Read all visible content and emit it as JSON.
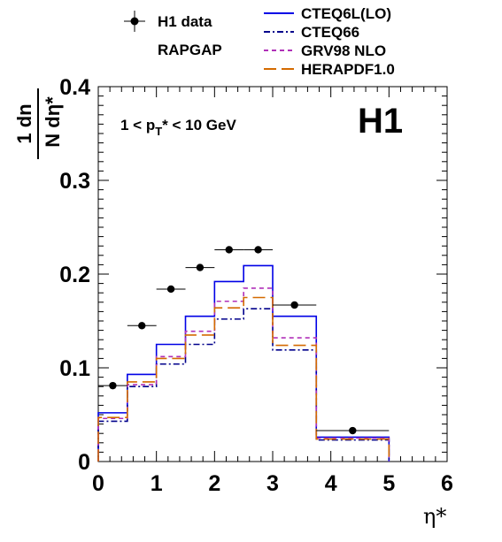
{
  "chart_data": {
    "type": "line",
    "title": "",
    "experiment_label": "H1",
    "selection_label": {
      "pre": "1 < p",
      "sub": "T",
      "post": "* < 10 GeV"
    },
    "xlabel": "η*",
    "ylabel": {
      "numerator": "1 dn",
      "denominator": "N dη*"
    },
    "xlim": [
      0,
      6
    ],
    "ylim": [
      0,
      0.4
    ],
    "x_ticks": [
      "0",
      "1",
      "2",
      "3",
      "4",
      "5",
      "6"
    ],
    "y_ticks": [
      "0",
      "0.1",
      "0.2",
      "0.3",
      "0.4"
    ],
    "grid": false,
    "bin_edges": [
      0,
      0.5,
      1.0,
      1.5,
      2.0,
      2.5,
      3.0,
      3.75,
      5.0
    ],
    "data_points": {
      "name": "H1 data",
      "points": [
        {
          "x": 0.25,
          "y": 0.081,
          "xerr": 0.25
        },
        {
          "x": 0.75,
          "y": 0.145,
          "xerr": 0.25
        },
        {
          "x": 1.25,
          "y": 0.184,
          "xerr": 0.25
        },
        {
          "x": 1.75,
          "y": 0.207,
          "xerr": 0.25
        },
        {
          "x": 2.25,
          "y": 0.226,
          "xerr": 0.25
        },
        {
          "x": 2.75,
          "y": 0.226,
          "xerr": 0.25
        },
        {
          "x": 3.375,
          "y": 0.167,
          "xerr": 0.375
        },
        {
          "x": 4.375,
          "y": 0.033,
          "xerr": 0.625
        }
      ]
    },
    "model_label": "RAPGAP",
    "series": [
      {
        "name": "CTEQ6L(LO)",
        "color": "#0000e6",
        "dash": "solid",
        "values": [
          0.052,
          0.093,
          0.125,
          0.155,
          0.192,
          0.209,
          0.155,
          0.026
        ]
      },
      {
        "name": "CTEQ66",
        "color": "#00008b",
        "dash": "dashdot",
        "values": [
          0.043,
          0.08,
          0.104,
          0.125,
          0.152,
          0.163,
          0.119,
          0.023
        ]
      },
      {
        "name": "GRV98 NLO",
        "color": "#b030b8",
        "dash": "dashed",
        "values": [
          0.046,
          0.082,
          0.112,
          0.139,
          0.171,
          0.185,
          0.132,
          0.025
        ]
      },
      {
        "name": "HERAPDF1.0",
        "color": "#d46a00",
        "dash": "longdash",
        "values": [
          0.047,
          0.085,
          0.11,
          0.135,
          0.164,
          0.175,
          0.124,
          0.024
        ]
      }
    ]
  }
}
